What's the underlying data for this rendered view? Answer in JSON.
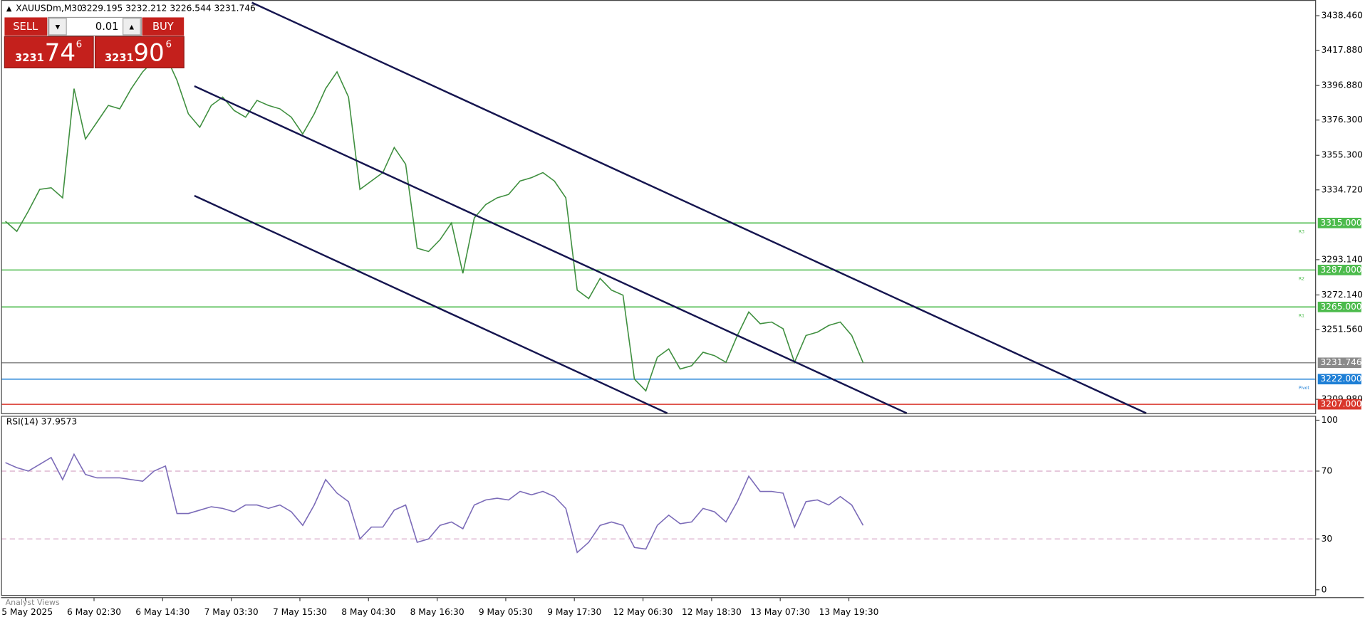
{
  "header": {
    "title": "XAUUSDm,M30",
    "ohlc": "3229.195 3232.212 3226.544 3231.746"
  },
  "trade_panel": {
    "sell": "SELL",
    "buy": "BUY",
    "lot": "0.01",
    "bid": {
      "big": "3231",
      "main": "74",
      "small": "6"
    },
    "ask": {
      "big": "3231",
      "main": "90",
      "small": "6"
    }
  },
  "chart_data": [
    {
      "type": "line",
      "color": "#3f8f3f",
      "xlim": [
        -0.38,
        114.6
      ],
      "ylim": [
        3201.7,
        3447.8
      ],
      "yticks": [
        {
          "value": 3438.46,
          "label": "3438.460"
        },
        {
          "value": 3417.88,
          "label": "3417.880"
        },
        {
          "value": 3396.88,
          "label": "3396.880"
        },
        {
          "value": 3376.3,
          "label": "3376.300"
        },
        {
          "value": 3355.3,
          "label": "3355.300"
        },
        {
          "value": 3334.72,
          "label": "3334.720"
        },
        {
          "value": 3293.14,
          "label": "3293.140"
        },
        {
          "value": 3272.14,
          "label": "3272.140"
        },
        {
          "value": 3251.56,
          "label": "3251.560"
        },
        {
          "value": 3209.98,
          "label": "3209.980"
        }
      ],
      "values": [
        3316,
        3310,
        3322,
        3335,
        3336,
        3330,
        3395,
        3365,
        3375,
        3385,
        3383,
        3395,
        3405,
        3412,
        3415,
        3400,
        3380,
        3372,
        3385,
        3390,
        3382,
        3378,
        3388,
        3385,
        3383,
        3378,
        3368,
        3380,
        3395,
        3405,
        3390,
        3335,
        3340,
        3345,
        3360,
        3350,
        3300,
        3298,
        3305,
        3315,
        3285,
        3318,
        3326,
        3330,
        3332,
        3340,
        3342,
        3345,
        3340,
        3330,
        3275,
        3270,
        3282,
        3275,
        3272,
        3222,
        3215,
        3235,
        3240,
        3228,
        3230,
        3238,
        3236,
        3232,
        3248,
        3262,
        3255,
        3256,
        3252,
        3232,
        3248,
        3250,
        3254,
        3256,
        3248,
        3231.746
      ],
      "levels": [
        {
          "value": 3315,
          "label": "3315.000",
          "color": "#4cbb4c",
          "tag": "R3"
        },
        {
          "value": 3287,
          "label": "3287.000",
          "color": "#4cbb4c",
          "tag": "R2"
        },
        {
          "value": 3265,
          "label": "3265.000",
          "color": "#4cbb4c",
          "tag": "R1"
        },
        {
          "value": 3231.746,
          "label": "3231.746",
          "color": "#8a8a8a"
        },
        {
          "value": 3222,
          "label": "3222.000",
          "color": "#1e7fd6",
          "tag": "Pivot"
        },
        {
          "value": 3207,
          "label": "3207.000",
          "color": "#d9362b"
        }
      ]
    },
    {
      "type": "line",
      "title": "RSI(14) 37.9573",
      "color": "#7b6bb8",
      "xlim": [
        -0.38,
        114.6
      ],
      "ylim": [
        -3.6,
        102.6
      ],
      "yticks": [
        100,
        70,
        30,
        0
      ],
      "grid_levels": [
        70,
        30
      ],
      "values": [
        75,
        72,
        70,
        74,
        78,
        65,
        80,
        68,
        66,
        66,
        66,
        65,
        64,
        70,
        73,
        45,
        45,
        47,
        49,
        48,
        46,
        50,
        50,
        48,
        50,
        46,
        38,
        50,
        65,
        57,
        52,
        30,
        37,
        37,
        47,
        50,
        28,
        30,
        38,
        40,
        36,
        50,
        53,
        54,
        53,
        58,
        56,
        58,
        55,
        48,
        22,
        28,
        38,
        40,
        38,
        25,
        24,
        38,
        44,
        39,
        40,
        48,
        46,
        40,
        52,
        67,
        58,
        58,
        57,
        37,
        52,
        53,
        50,
        55,
        50,
        38
      ],
      "xticks": [
        {
          "value": 1.75,
          "label": "5 May 2025"
        },
        {
          "value": 7.75,
          "label": "6 May 02:30"
        },
        {
          "value": 13.75,
          "label": "6 May 14:30"
        },
        {
          "value": 19.75,
          "label": "7 May 03:30"
        },
        {
          "value": 25.75,
          "label": "7 May 15:30"
        },
        {
          "value": 31.75,
          "label": "8 May 04:30"
        },
        {
          "value": 37.75,
          "label": "8 May 16:30"
        },
        {
          "value": 43.75,
          "label": "9 May 05:30"
        },
        {
          "value": 49.75,
          "label": "9 May 17:30"
        },
        {
          "value": 55.75,
          "label": "12 May 06:30"
        },
        {
          "value": 61.75,
          "label": "12 May 18:30"
        },
        {
          "value": 67.75,
          "label": "13 May 07:30"
        },
        {
          "value": 73.75,
          "label": "13 May 19:30"
        }
      ]
    }
  ],
  "footer": {
    "tab": "Analyst Views"
  }
}
